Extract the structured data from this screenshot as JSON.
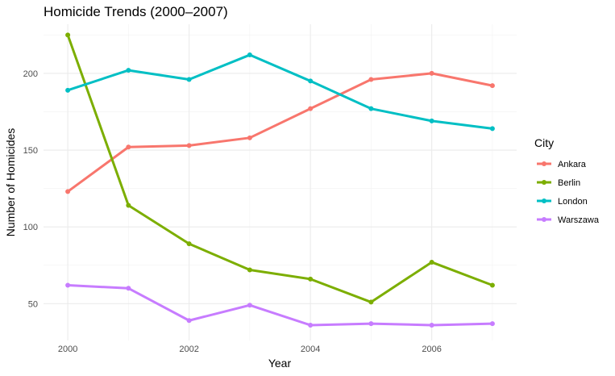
{
  "chart_data": {
    "type": "line",
    "title": "Homicide Trends (2000–2007)",
    "xlabel": "Year",
    "ylabel": "Number of Homicides",
    "x": [
      2000,
      2001,
      2002,
      2003,
      2004,
      2005,
      2006,
      2007
    ],
    "xlim": [
      1999.6,
      2007.4
    ],
    "ylim": [
      26,
      232
    ],
    "x_ticks": [
      2000,
      2002,
      2004,
      2006
    ],
    "x_tick_labels": [
      "2000",
      "2002",
      "2004",
      "2006"
    ],
    "y_ticks": [
      50,
      100,
      150,
      200
    ],
    "y_tick_labels": [
      "50",
      "100",
      "150",
      "200"
    ],
    "grid": true,
    "legend_title": "City",
    "legend_position": "right",
    "series": [
      {
        "name": "Ankara",
        "color": "#F8766D",
        "values": [
          123,
          152,
          153,
          158,
          177,
          196,
          200,
          192
        ]
      },
      {
        "name": "Berlin",
        "color": "#7CAE00",
        "values": [
          225,
          114,
          89,
          72,
          66,
          51,
          77,
          62
        ]
      },
      {
        "name": "London",
        "color": "#00BFC4",
        "values": [
          189,
          202,
          196,
          212,
          195,
          177,
          169,
          164
        ]
      },
      {
        "name": "Warszawa",
        "color": "#C77CFF",
        "values": [
          62,
          60,
          39,
          49,
          36,
          37,
          36,
          37
        ]
      }
    ]
  }
}
